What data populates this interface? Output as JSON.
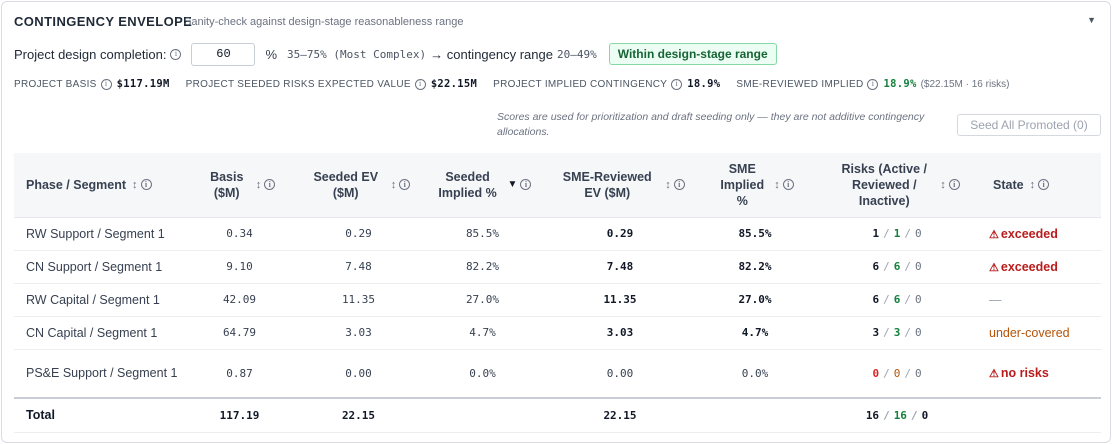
{
  "header": {
    "title": "CONTINGENCY ENVELOPE",
    "subtitle": "Sanity-check against design-stage reasonableness range",
    "collapse_icon": "caret-down-icon"
  },
  "design_completion": {
    "label": "Project design completion:",
    "value": "60",
    "unit": "%",
    "range_label": "35–75% (Most Complex)",
    "arrow_text": "→ contingency range",
    "contingency_range": "20–49%",
    "status_badge": "Within design-stage range"
  },
  "summary": {
    "basis_label": "PROJECT BASIS",
    "basis_value": "$117.19M",
    "seeded_label": "PROJECT SEEDED RISKS EXPECTED VALUE",
    "seeded_value": "$22.15M",
    "implied_label": "PROJECT IMPLIED CONTINGENCY",
    "implied_value": "18.9%",
    "sme_label": "SME-REVIEWED IMPLIED",
    "sme_value": "18.9%",
    "sme_note": "($22.15M · 16 risks)"
  },
  "disclaimer": "Scores are used for prioritization and draft seeding only — they are not additive contingency allocations.",
  "seed_button": "Seed All Promoted (0)",
  "table": {
    "headers": {
      "segment": "Phase / Segment",
      "basis": "Basis ($M)",
      "seeded_ev": "Seeded EV ($M)",
      "seeded_implied": "Seeded Implied %",
      "sme_ev": "SME-Reviewed EV ($M)",
      "sme_implied": "SME Implied %",
      "risks": "Risks (Active / Reviewed / Inactive)",
      "state": "State"
    },
    "rows": [
      {
        "segment": "RW Support / Segment 1",
        "basis": "0.34",
        "seeded_ev": "0.29",
        "seeded_implied": "85.5%",
        "sme_ev": "0.29",
        "sme_implied": "85.5%",
        "active": "1",
        "reviewed": "1",
        "inactive": "0",
        "state": "exceeded"
      },
      {
        "segment": "CN Support / Segment 1",
        "basis": "9.10",
        "seeded_ev": "7.48",
        "seeded_implied": "82.2%",
        "sme_ev": "7.48",
        "sme_implied": "82.2%",
        "active": "6",
        "reviewed": "6",
        "inactive": "0",
        "state": "exceeded"
      },
      {
        "segment": "RW Capital / Segment 1",
        "basis": "42.09",
        "seeded_ev": "11.35",
        "seeded_implied": "27.0%",
        "sme_ev": "11.35",
        "sme_implied": "27.0%",
        "active": "6",
        "reviewed": "6",
        "inactive": "0",
        "state": "—"
      },
      {
        "segment": "CN Capital / Segment 1",
        "basis": "64.79",
        "seeded_ev": "3.03",
        "seeded_implied": "4.7%",
        "sme_ev": "3.03",
        "sme_implied": "4.7%",
        "active": "3",
        "reviewed": "3",
        "inactive": "0",
        "state": "under-covered"
      },
      {
        "segment": "PS&E Support / Segment 1",
        "basis": "0.87",
        "seeded_ev": "0.00",
        "seeded_implied": "0.0%",
        "sme_ev": "0.00",
        "sme_implied": "0.0%",
        "active": "0",
        "reviewed": "0",
        "inactive": "0",
        "state": "no risks"
      }
    ],
    "total": {
      "label": "Total",
      "basis": "117.19",
      "seeded_ev": "22.15",
      "sme_ev": "22.15",
      "active": "16",
      "reviewed": "16",
      "inactive": "0"
    }
  },
  "colors": {
    "accent_green": "#15803d",
    "alert_red": "#b91c1c",
    "warning_amber": "#b45309"
  }
}
